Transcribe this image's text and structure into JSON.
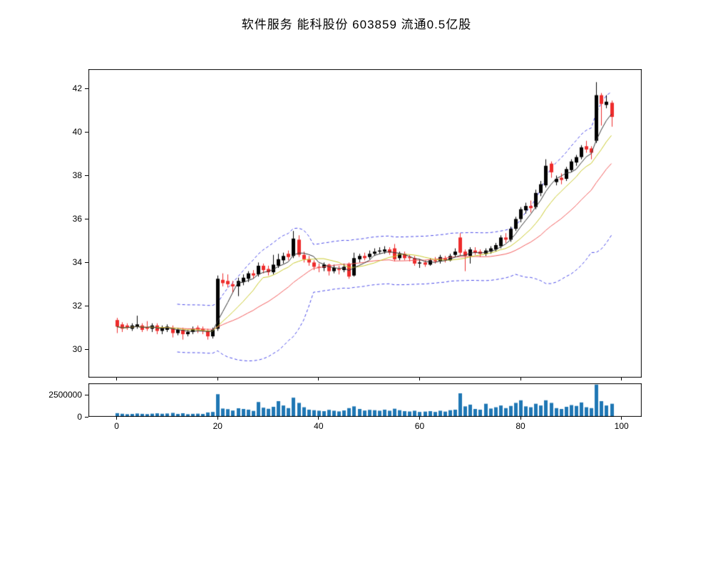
{
  "title": "软件服务  能科股份  603859  流通0.5亿股",
  "colors": {
    "background": "#ffffff",
    "axis": "#000000",
    "candle_up": "#000000",
    "candle_down": "#ee2c2c",
    "volume_bar": "#1f77b4",
    "ma5": "#333333",
    "ma10": "#c9c92c",
    "ma20": "#f25c5c",
    "bollinger": "#4a4ae8"
  },
  "chart_data": {
    "type": "candlestick",
    "title": "软件服务  能科股份  603859  流通0.5亿股",
    "grid": false,
    "legend_position": "none",
    "panels": [
      "price",
      "volume"
    ],
    "x": {
      "ticks": [
        0,
        20,
        40,
        60,
        80,
        100
      ],
      "lim": [
        -5.6,
        104
      ]
    },
    "price_axis": {
      "ticks": [
        30,
        32,
        34,
        36,
        38,
        40,
        42
      ],
      "lim": [
        28.7,
        42.9
      ]
    },
    "volume_axis": {
      "ticks": [
        0,
        2500000
      ],
      "tick_labels": [
        "0",
        "2500000"
      ],
      "lim": [
        0,
        3850000
      ]
    },
    "overlays": {
      "moving_averages": [
        {
          "period": 5,
          "color": "#333333"
        },
        {
          "period": 10,
          "color": "#c9c92c"
        },
        {
          "period": 20,
          "color": "#f25c5c"
        }
      ],
      "bollinger_bands": {
        "period": 20,
        "stdev_mult": 2,
        "min_halfwidth": 1.1,
        "start_index": 12,
        "color": "#4a4ae8",
        "style": "dashed"
      }
    },
    "candles_columns": [
      "open",
      "high",
      "low",
      "close",
      "volume"
    ],
    "candles": [
      [
        31.35,
        31.45,
        30.75,
        31.05,
        420000
      ],
      [
        31.15,
        31.25,
        30.8,
        30.95,
        350000
      ],
      [
        31.1,
        31.2,
        30.9,
        31.0,
        300000
      ],
      [
        30.95,
        31.2,
        30.85,
        31.1,
        330000
      ],
      [
        31.05,
        31.55,
        30.95,
        31.15,
        380000
      ],
      [
        31.1,
        31.2,
        30.8,
        30.9,
        340000
      ],
      [
        31.0,
        31.3,
        30.85,
        30.95,
        310000
      ],
      [
        30.95,
        31.2,
        30.8,
        31.1,
        360000
      ],
      [
        31.1,
        31.2,
        30.7,
        30.85,
        400000
      ],
      [
        30.85,
        31.1,
        30.7,
        31.0,
        350000
      ],
      [
        30.9,
        31.15,
        30.8,
        31.05,
        380000
      ],
      [
        31.0,
        31.1,
        30.55,
        30.75,
        450000
      ],
      [
        30.75,
        31.0,
        30.65,
        30.9,
        330000
      ],
      [
        30.9,
        31.0,
        30.45,
        30.7,
        410000
      ],
      [
        30.7,
        30.9,
        30.6,
        30.8,
        300000
      ],
      [
        30.8,
        31.05,
        30.7,
        30.95,
        340000
      ],
      [
        31.0,
        31.1,
        30.75,
        30.9,
        360000
      ],
      [
        30.95,
        31.05,
        30.7,
        30.85,
        330000
      ],
      [
        30.85,
        30.95,
        30.45,
        30.6,
        500000
      ],
      [
        30.6,
        31.0,
        30.5,
        30.9,
        560000
      ],
      [
        30.95,
        33.4,
        30.85,
        33.25,
        2600000
      ],
      [
        33.2,
        33.5,
        32.9,
        33.05,
        950000
      ],
      [
        33.15,
        33.45,
        32.85,
        33.0,
        880000
      ],
      [
        33.0,
        33.15,
        32.6,
        32.9,
        720000
      ],
      [
        32.9,
        33.3,
        32.45,
        33.15,
        980000
      ],
      [
        33.1,
        33.45,
        32.95,
        33.3,
        900000
      ],
      [
        33.25,
        33.6,
        33.1,
        33.5,
        820000
      ],
      [
        33.5,
        33.65,
        33.25,
        33.4,
        680000
      ],
      [
        33.45,
        34.0,
        33.35,
        33.85,
        1700000
      ],
      [
        33.85,
        33.95,
        33.5,
        33.65,
        1050000
      ],
      [
        33.7,
        33.85,
        33.4,
        33.55,
        920000
      ],
      [
        33.55,
        34.35,
        33.45,
        33.9,
        1150000
      ],
      [
        33.85,
        34.4,
        33.75,
        34.15,
        1800000
      ],
      [
        34.1,
        34.45,
        33.95,
        34.3,
        1300000
      ],
      [
        34.4,
        34.55,
        34.1,
        34.25,
        1000000
      ],
      [
        34.3,
        35.45,
        34.2,
        35.1,
        2200000
      ],
      [
        35.05,
        35.25,
        34.25,
        34.35,
        1600000
      ],
      [
        34.35,
        34.5,
        34.0,
        34.15,
        1100000
      ],
      [
        34.15,
        34.3,
        33.85,
        34.0,
        820000
      ],
      [
        34.0,
        34.1,
        33.65,
        33.8,
        760000
      ],
      [
        33.8,
        33.95,
        33.55,
        33.75,
        700000
      ],
      [
        33.75,
        34.0,
        33.6,
        33.9,
        650000
      ],
      [
        33.9,
        33.95,
        33.4,
        33.6,
        800000
      ],
      [
        33.6,
        33.9,
        33.5,
        33.75,
        700000
      ],
      [
        33.7,
        33.85,
        33.45,
        33.65,
        620000
      ],
      [
        33.65,
        33.95,
        33.55,
        33.8,
        730000
      ],
      [
        33.95,
        34.0,
        33.25,
        33.35,
        1000000
      ],
      [
        33.4,
        34.45,
        33.35,
        34.2,
        1200000
      ],
      [
        34.15,
        34.4,
        34.0,
        34.3,
        900000
      ],
      [
        34.3,
        34.45,
        34.1,
        34.2,
        720000
      ],
      [
        34.25,
        34.55,
        34.15,
        34.4,
        800000
      ],
      [
        34.4,
        34.65,
        34.3,
        34.5,
        760000
      ],
      [
        34.5,
        34.7,
        34.4,
        34.55,
        700000
      ],
      [
        34.5,
        34.75,
        34.4,
        34.6,
        820000
      ],
      [
        34.6,
        34.7,
        34.35,
        34.45,
        700000
      ],
      [
        34.65,
        34.85,
        34.05,
        34.15,
        930000
      ],
      [
        34.2,
        34.5,
        34.1,
        34.4,
        760000
      ],
      [
        34.4,
        34.5,
        34.1,
        34.2,
        650000
      ],
      [
        34.25,
        34.35,
        34.05,
        34.2,
        610000
      ],
      [
        34.2,
        34.3,
        33.85,
        33.95,
        700000
      ],
      [
        33.95,
        34.15,
        33.75,
        34.0,
        560000
      ],
      [
        34.0,
        34.1,
        33.8,
        33.9,
        600000
      ],
      [
        33.9,
        34.2,
        33.85,
        34.1,
        650000
      ],
      [
        34.1,
        34.25,
        33.95,
        34.05,
        560000
      ],
      [
        34.05,
        34.35,
        33.95,
        34.25,
        700000
      ],
      [
        34.2,
        34.3,
        34.0,
        34.1,
        600000
      ],
      [
        34.1,
        34.4,
        34.05,
        34.3,
        760000
      ],
      [
        34.35,
        34.65,
        34.25,
        34.5,
        820000
      ],
      [
        35.15,
        35.35,
        34.3,
        34.45,
        2700000
      ],
      [
        34.5,
        34.6,
        33.6,
        34.3,
        1200000
      ],
      [
        34.3,
        34.7,
        33.95,
        34.6,
        1400000
      ],
      [
        34.55,
        34.7,
        34.35,
        34.45,
        900000
      ],
      [
        34.5,
        34.6,
        34.25,
        34.4,
        820000
      ],
      [
        34.4,
        34.65,
        34.3,
        34.55,
        1500000
      ],
      [
        34.5,
        34.75,
        34.4,
        34.65,
        950000
      ],
      [
        34.6,
        34.9,
        34.5,
        34.8,
        1100000
      ],
      [
        34.75,
        35.25,
        34.65,
        35.15,
        1300000
      ],
      [
        35.15,
        35.35,
        34.9,
        35.05,
        1000000
      ],
      [
        35.05,
        35.65,
        34.95,
        35.55,
        1250000
      ],
      [
        35.55,
        36.1,
        35.45,
        36.0,
        1600000
      ],
      [
        36.0,
        36.55,
        35.85,
        36.45,
        1900000
      ],
      [
        36.4,
        36.75,
        36.25,
        36.6,
        1200000
      ],
      [
        36.6,
        36.85,
        36.3,
        36.5,
        1100000
      ],
      [
        36.55,
        37.35,
        36.45,
        37.2,
        1500000
      ],
      [
        37.2,
        37.75,
        37.05,
        37.6,
        1300000
      ],
      [
        37.55,
        38.75,
        37.45,
        38.45,
        1900000
      ],
      [
        38.55,
        38.65,
        37.9,
        38.15,
        1600000
      ],
      [
        37.7,
        38.0,
        37.55,
        37.85,
        1000000
      ],
      [
        37.9,
        38.1,
        37.6,
        37.8,
        900000
      ],
      [
        37.85,
        38.4,
        37.75,
        38.3,
        1150000
      ],
      [
        38.25,
        38.75,
        38.15,
        38.65,
        1350000
      ],
      [
        38.6,
        38.95,
        38.45,
        38.85,
        1250000
      ],
      [
        38.85,
        39.4,
        38.75,
        39.3,
        1650000
      ],
      [
        39.35,
        39.6,
        39.05,
        39.2,
        1100000
      ],
      [
        39.25,
        39.35,
        38.75,
        39.05,
        1000000
      ],
      [
        39.6,
        42.3,
        39.5,
        41.7,
        3700000
      ],
      [
        41.7,
        41.8,
        40.3,
        41.3,
        1800000
      ],
      [
        41.25,
        41.7,
        41.1,
        41.4,
        1300000
      ],
      [
        41.35,
        41.45,
        40.25,
        40.7,
        1500000
      ]
    ]
  }
}
